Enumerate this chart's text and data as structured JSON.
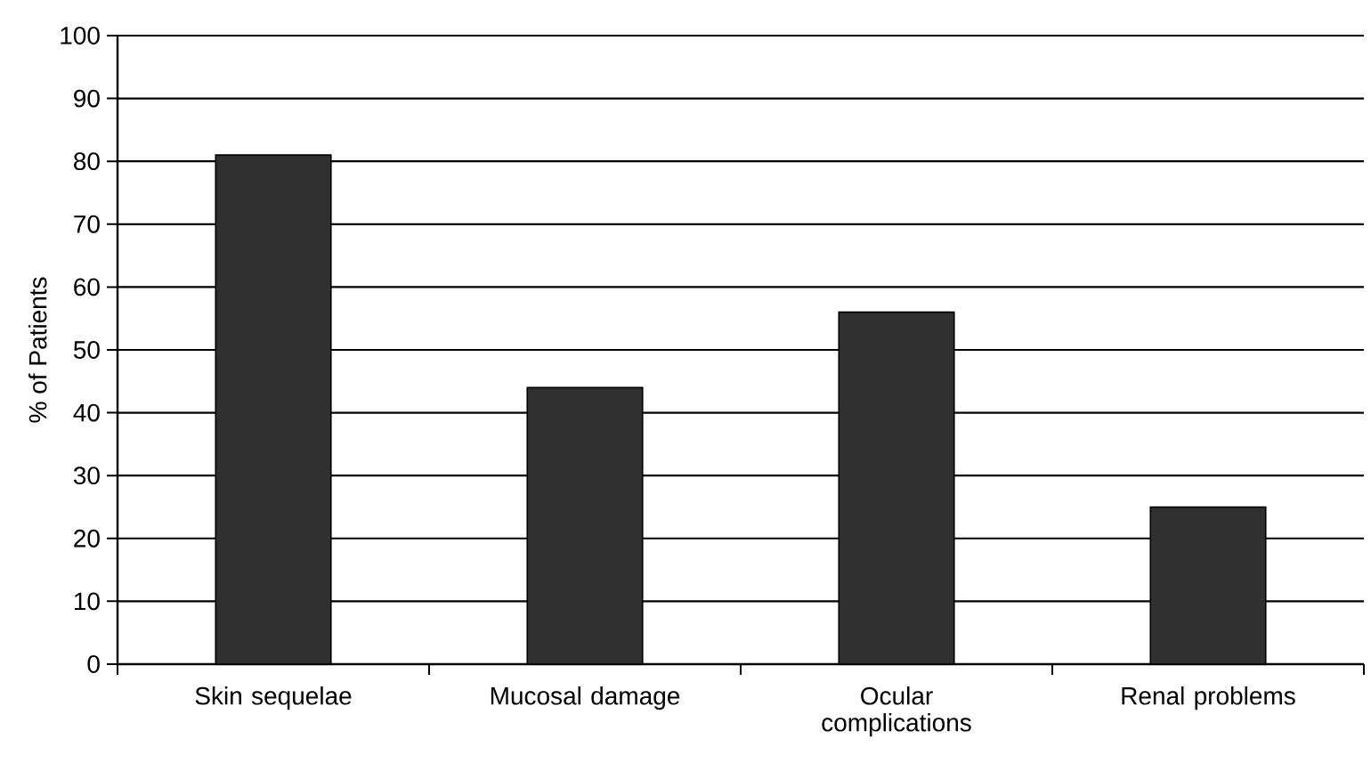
{
  "chart_data": {
    "type": "bar",
    "ylabel": "% of Patients",
    "categories": [
      "Skin sequelae",
      "Mucosal damage",
      "Ocular complications",
      "Renal problems"
    ],
    "values": [
      81,
      44,
      56,
      25
    ],
    "color": "#303030",
    "ylim": [
      0,
      100
    ],
    "yticks": [
      0,
      10,
      20,
      30,
      40,
      50,
      60,
      70,
      80,
      90,
      100
    ],
    "grid": "y"
  }
}
